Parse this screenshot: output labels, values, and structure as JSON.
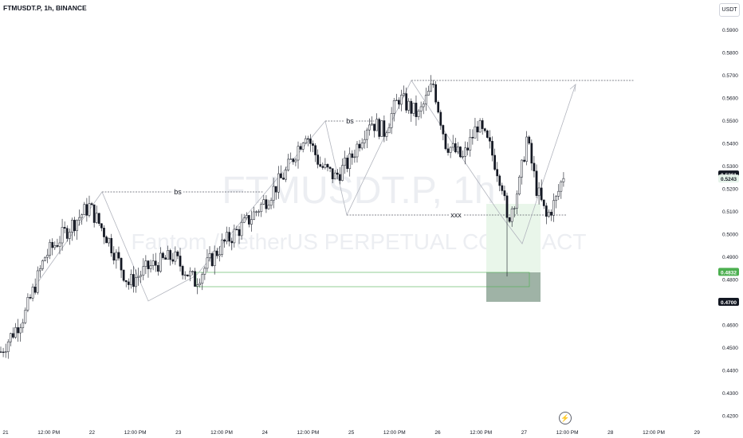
{
  "header": {
    "title": "FTMUSDT.P, 1h, BINANCE",
    "currency": "USDT"
  },
  "watermark": {
    "symbol": "FTMUSDT.P, 1h",
    "description": "Fantom / TetherUS PERPETUAL CONTRACT"
  },
  "chart_data": {
    "type": "candlestick",
    "ylim": [
      0.42,
      0.595
    ],
    "y_ticks": [
      "0.5900",
      "0.5800",
      "0.5700",
      "0.5600",
      "0.5500",
      "0.5400",
      "0.5300",
      "0.5200",
      "0.5100",
      "0.5000",
      "0.4900",
      "0.4800",
      "0.4700",
      "0.4600",
      "0.4500",
      "0.4400",
      "0.4300",
      "0.4200"
    ],
    "x_ticks": [
      "21",
      "12:00 PM",
      "22",
      "12:00 PM",
      "23",
      "12:00 PM",
      "24",
      "12:00 PM",
      "25",
      "12:00 PM",
      "26",
      "12:00 PM",
      "27",
      "12:00 PM",
      "28",
      "12:00 PM",
      "29"
    ],
    "price_badges": [
      {
        "label": "0.5261",
        "bg": "#131722",
        "fg": "#ffffff"
      },
      {
        "label": "0.5243",
        "bg": "#e6f3ea",
        "fg": "#131722"
      },
      {
        "label": "0.4832",
        "bg": "#4caf50",
        "fg": "#ffffff"
      },
      {
        "label": "0.4700",
        "bg": "#131722",
        "fg": "#ffffff"
      }
    ],
    "annotations": [
      "bs",
      "bs",
      "xxx"
    ],
    "waypoints": [
      [
        0,
        0.448
      ],
      [
        10,
        0.465
      ],
      [
        18,
        0.49
      ],
      [
        28,
        0.503
      ],
      [
        36,
        0.512
      ],
      [
        44,
        0.497
      ],
      [
        52,
        0.478
      ],
      [
        60,
        0.485
      ],
      [
        70,
        0.49
      ],
      [
        79,
        0.479
      ],
      [
        90,
        0.495
      ],
      [
        100,
        0.505
      ],
      [
        108,
        0.515
      ],
      [
        116,
        0.527
      ],
      [
        124,
        0.545
      ],
      [
        130,
        0.53
      ],
      [
        136,
        0.525
      ],
      [
        142,
        0.532
      ],
      [
        150,
        0.55
      ],
      [
        156,
        0.545
      ],
      [
        162,
        0.56
      ],
      [
        170,
        0.552
      ],
      [
        176,
        0.566
      ],
      [
        181,
        0.54
      ],
      [
        188,
        0.533
      ],
      [
        194,
        0.548
      ],
      [
        199,
        0.538
      ],
      [
        204,
        0.522
      ],
      [
        206,
        0.505
      ],
      [
        211,
        0.522
      ],
      [
        214,
        0.542
      ],
      [
        218,
        0.52
      ],
      [
        222,
        0.507
      ],
      [
        226,
        0.515
      ],
      [
        229,
        0.526
      ]
    ],
    "colors": {
      "candle": "#131722",
      "demand_zone": "#4caf50",
      "target_box": "#8fa99a",
      "line": "#b2b5be"
    }
  }
}
